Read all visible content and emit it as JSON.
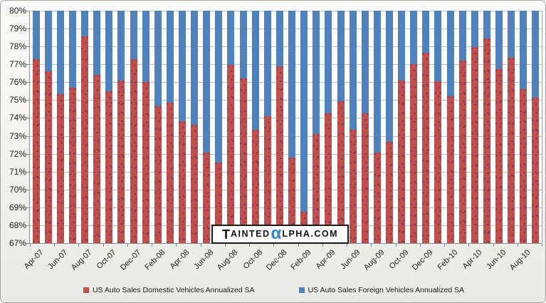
{
  "chart_data": {
    "type": "bar",
    "stacked": true,
    "orientation": "vertical",
    "categories": [
      "Apr-07",
      "May-07",
      "Jun-07",
      "Jul-07",
      "Aug-07",
      "Sep-07",
      "Oct-07",
      "Nov-07",
      "Dec-07",
      "Jan-08",
      "Feb-08",
      "Mar-08",
      "Apr-08",
      "May-08",
      "Jun-08",
      "Jul-08",
      "Aug-08",
      "Sep-08",
      "Oct-08",
      "Nov-08",
      "Dec-08",
      "Jan-09",
      "Feb-09",
      "Mar-09",
      "Apr-09",
      "May-09",
      "Jun-09",
      "Jul-09",
      "Aug-09",
      "Sep-09",
      "Oct-09",
      "Nov-09",
      "Dec-09",
      "Jan-10",
      "Feb-10",
      "Mar-10",
      "Apr-10",
      "May-10",
      "Jun-10",
      "Jul-10",
      "Aug-10",
      "Sep-10"
    ],
    "series": [
      {
        "name": "US Auto Sales Domestic Vehicles Annualized SA",
        "color": "#c0504d",
        "values": [
          77.3,
          76.6,
          75.35,
          75.7,
          78.55,
          76.4,
          75.5,
          76.1,
          77.3,
          76.0,
          74.65,
          74.85,
          73.8,
          73.6,
          72.05,
          71.5,
          76.95,
          76.2,
          73.35,
          74.1,
          76.9,
          71.8,
          68.75,
          73.1,
          74.25,
          74.95,
          73.35,
          74.25,
          72.05,
          72.65,
          76.1,
          77.0,
          77.65,
          76.05,
          75.2,
          77.2,
          77.95,
          78.45,
          76.75,
          77.35,
          75.6,
          75.15
        ]
      },
      {
        "name": "US Auto Sales Foreign Vehicles Annualized SA",
        "color": "#4f81bd",
        "values": [
          22.7,
          23.4,
          24.65,
          24.3,
          21.45,
          23.6,
          24.5,
          23.9,
          22.7,
          24.0,
          25.35,
          25.15,
          26.2,
          26.4,
          27.95,
          28.5,
          23.05,
          23.8,
          26.65,
          25.9,
          23.1,
          28.2,
          31.25,
          26.9,
          25.75,
          25.05,
          26.65,
          25.75,
          27.95,
          27.35,
          23.9,
          23.0,
          22.35,
          23.95,
          24.8,
          22.8,
          22.05,
          21.55,
          23.25,
          22.65,
          24.4,
          24.85
        ]
      }
    ],
    "title": "",
    "xlabel": "",
    "ylabel": "",
    "ylim": [
      67,
      80
    ],
    "ytick_step": 1,
    "y_tick_labels": [
      "80%",
      "79%",
      "78%",
      "77%",
      "76%",
      "75%",
      "74%",
      "73%",
      "72%",
      "71%",
      "70%",
      "69%",
      "68%",
      "67%"
    ],
    "x_tick_labels_shown": [
      "Apr-07",
      "Jun-07",
      "Aug-07",
      "Oct-07",
      "Dec-07",
      "Feb-08",
      "Apr-08",
      "Jun-08",
      "Aug-08",
      "Oct-08",
      "Dec-08",
      "Feb-09",
      "Apr-09",
      "Jun-09",
      "Aug-09",
      "Oct-09",
      "Dec-09",
      "Feb-10",
      "Apr-10",
      "Jun-10",
      "Aug-10"
    ],
    "grid": "horizontal",
    "legend_position": "bottom"
  },
  "legend": {
    "domestic_label": "US Auto Sales Domestic Vehicles Annualized SA",
    "foreign_label": "US Auto Sales Foreign Vehicles Annualized SA"
  },
  "watermark": {
    "t": "T",
    "ainted": "AINTED",
    "alpha": "α",
    "lpha_com": "LPHA.COM"
  },
  "colors": {
    "domestic": "#c0504d",
    "foreign": "#4f81bd",
    "gridline": "#bfbfbf",
    "axis": "#8c8c8c",
    "watermark_alpha": "#2e86ca"
  }
}
